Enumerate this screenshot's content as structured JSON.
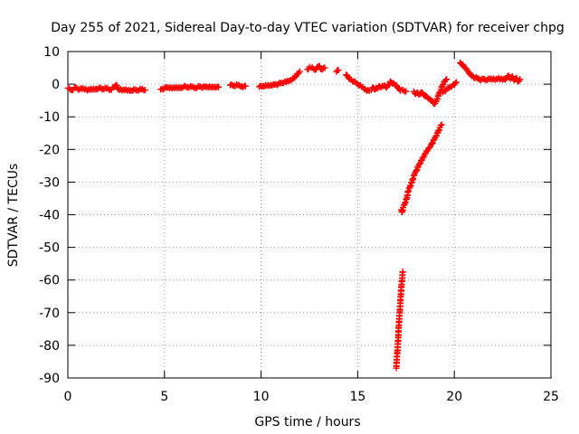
{
  "chart_data": {
    "type": "scatter",
    "title": "Day 255 of 2021, Sidereal Day-to-day VTEC variation (SDTVAR) for receiver chpg",
    "xlabel": "GPS time / hours",
    "ylabel": "SDTVAR / TECUs",
    "xlim": [
      0,
      25
    ],
    "ylim": [
      -90,
      10
    ],
    "xticks": [
      0,
      5,
      10,
      15,
      20,
      25
    ],
    "yticks": [
      10,
      0,
      -10,
      -20,
      -30,
      -40,
      -50,
      -60,
      -70,
      -80,
      -90
    ],
    "grid": true,
    "marker": "+",
    "series": [
      {
        "name": "chpg",
        "color": "#ff0000",
        "points": [
          [
            0.0,
            -1.2
          ],
          [
            0.2,
            -1.8
          ],
          [
            0.4,
            -1.0
          ],
          [
            0.6,
            -1.6
          ],
          [
            0.8,
            -1.3
          ],
          [
            1.0,
            -1.9
          ],
          [
            1.2,
            -1.4
          ],
          [
            1.4,
            -1.6
          ],
          [
            1.6,
            -1.2
          ],
          [
            1.8,
            -1.5
          ],
          [
            2.0,
            -1.3
          ],
          [
            2.2,
            -1.7
          ],
          [
            2.4,
            -0.8
          ],
          [
            2.5,
            -0.3
          ],
          [
            2.6,
            -1.5
          ],
          [
            2.8,
            -1.9
          ],
          [
            3.0,
            -1.6
          ],
          [
            3.2,
            -2.0
          ],
          [
            3.4,
            -1.7
          ],
          [
            3.6,
            -1.9
          ],
          [
            3.8,
            -1.6
          ],
          [
            4.0,
            -1.8
          ],
          [
            4.8,
            -1.6
          ],
          [
            5.0,
            -1.2
          ],
          [
            5.2,
            -1.0
          ],
          [
            5.4,
            -1.3
          ],
          [
            5.6,
            -0.9
          ],
          [
            5.8,
            -1.2
          ],
          [
            6.0,
            -0.7
          ],
          [
            6.2,
            -1.0
          ],
          [
            6.4,
            -0.8
          ],
          [
            6.6,
            -1.1
          ],
          [
            6.8,
            -0.7
          ],
          [
            7.0,
            -0.9
          ],
          [
            7.2,
            -0.8
          ],
          [
            7.4,
            -1.0
          ],
          [
            7.6,
            -0.8
          ],
          [
            7.8,
            -0.9
          ],
          [
            8.4,
            -0.3
          ],
          [
            8.6,
            -0.5
          ],
          [
            8.8,
            -0.3
          ],
          [
            9.0,
            -0.7
          ],
          [
            9.2,
            -0.6
          ],
          [
            9.9,
            -0.8
          ],
          [
            10.1,
            -0.6
          ],
          [
            10.3,
            -0.5
          ],
          [
            10.5,
            -0.3
          ],
          [
            10.7,
            -0.1
          ],
          [
            10.9,
            0.1
          ],
          [
            11.1,
            0.4
          ],
          [
            11.3,
            0.7
          ],
          [
            11.5,
            1.2
          ],
          [
            11.7,
            1.8
          ],
          [
            11.8,
            2.5
          ],
          [
            11.9,
            3.2
          ],
          [
            12.0,
            3.9
          ],
          [
            12.4,
            4.5
          ],
          [
            12.5,
            5.3
          ],
          [
            12.6,
            5.0
          ],
          [
            12.8,
            4.4
          ],
          [
            13.0,
            5.6
          ],
          [
            13.1,
            4.6
          ],
          [
            13.3,
            5.0
          ],
          [
            13.9,
            3.8
          ],
          [
            14.0,
            4.3
          ],
          [
            14.4,
            2.9
          ],
          [
            14.5,
            2.2
          ],
          [
            14.6,
            1.6
          ],
          [
            14.8,
            0.8
          ],
          [
            15.0,
            0.0
          ],
          [
            15.2,
            -0.8
          ],
          [
            15.4,
            -1.6
          ],
          [
            15.6,
            -2.1
          ],
          [
            15.7,
            -1.8
          ],
          [
            15.8,
            -1.0
          ],
          [
            15.9,
            -1.6
          ],
          [
            16.0,
            -1.2
          ],
          [
            16.1,
            -0.6
          ],
          [
            16.2,
            -1.0
          ],
          [
            16.4,
            -0.4
          ],
          [
            16.5,
            -1.0
          ],
          [
            16.6,
            -0.2
          ],
          [
            16.7,
            0.8
          ],
          [
            16.8,
            0.2
          ],
          [
            17.0,
            -0.4
          ],
          [
            17.1,
            -1.2
          ],
          [
            17.2,
            -2.0
          ],
          [
            17.3,
            -1.7
          ],
          [
            17.5,
            -2.2
          ],
          [
            17.9,
            -2.3
          ],
          [
            18.0,
            -3.0
          ],
          [
            18.1,
            -2.6
          ],
          [
            18.2,
            -3.1
          ],
          [
            18.3,
            -2.5
          ],
          [
            18.4,
            -3.2
          ],
          [
            18.5,
            -3.6
          ],
          [
            18.6,
            -4.0
          ],
          [
            18.7,
            -4.4
          ],
          [
            18.8,
            -5.0
          ],
          [
            18.9,
            -5.6
          ],
          [
            19.0,
            -6.0
          ],
          [
            19.1,
            -4.6
          ],
          [
            19.2,
            -3.0
          ],
          [
            19.3,
            -1.6
          ],
          [
            19.4,
            -0.2
          ],
          [
            19.5,
            0.8
          ],
          [
            19.6,
            1.5
          ],
          [
            19.4,
            -2.4
          ],
          [
            19.6,
            -1.6
          ],
          [
            19.8,
            -0.8
          ],
          [
            20.0,
            -0.2
          ],
          [
            20.1,
            0.6
          ],
          [
            20.3,
            6.6
          ],
          [
            20.4,
            6.0
          ],
          [
            20.5,
            5.4
          ],
          [
            20.6,
            4.8
          ],
          [
            20.7,
            4.0
          ],
          [
            20.8,
            3.2
          ],
          [
            20.9,
            2.6
          ],
          [
            21.0,
            2.0
          ],
          [
            21.2,
            1.8
          ],
          [
            21.3,
            1.4
          ],
          [
            21.5,
            1.6
          ],
          [
            21.7,
            1.3
          ],
          [
            21.9,
            1.7
          ],
          [
            22.1,
            1.3
          ],
          [
            22.3,
            1.9
          ],
          [
            22.5,
            1.4
          ],
          [
            22.7,
            1.8
          ],
          [
            22.8,
            2.6
          ],
          [
            22.9,
            1.6
          ],
          [
            23.0,
            2.4
          ],
          [
            23.1,
            1.2
          ],
          [
            23.2,
            1.9
          ],
          [
            23.3,
            0.8
          ],
          [
            23.4,
            1.5
          ],
          [
            17.25,
            -38.5
          ],
          [
            17.3,
            -39.2
          ],
          [
            17.35,
            -37.8
          ],
          [
            17.45,
            -36.4
          ],
          [
            17.55,
            -34.8
          ],
          [
            17.6,
            -32.9
          ],
          [
            17.7,
            -31.5
          ],
          [
            17.8,
            -30.0
          ],
          [
            17.85,
            -29.2
          ],
          [
            17.95,
            -27.3
          ],
          [
            18.05,
            -26.4
          ],
          [
            18.15,
            -24.8
          ],
          [
            18.25,
            -24.1
          ],
          [
            18.35,
            -22.6
          ],
          [
            18.45,
            -21.9
          ],
          [
            18.55,
            -20.5
          ],
          [
            18.65,
            -19.9
          ],
          [
            18.75,
            -19.1
          ],
          [
            18.85,
            -18.2
          ],
          [
            18.95,
            -17.0
          ],
          [
            19.05,
            -15.9
          ],
          [
            19.15,
            -14.7
          ],
          [
            19.25,
            -13.3
          ],
          [
            19.35,
            -12.4
          ],
          [
            17.0,
            -87.0
          ],
          [
            17.02,
            -84.5
          ],
          [
            17.05,
            -82.0
          ],
          [
            17.08,
            -79.5
          ],
          [
            17.1,
            -77.0
          ],
          [
            17.12,
            -74.5
          ],
          [
            17.15,
            -72.0
          ],
          [
            17.18,
            -69.5
          ],
          [
            17.2,
            -67.0
          ],
          [
            17.23,
            -64.5
          ],
          [
            17.26,
            -62.0
          ],
          [
            17.3,
            -59.5
          ],
          [
            17.33,
            -57.5
          ]
        ]
      }
    ]
  }
}
